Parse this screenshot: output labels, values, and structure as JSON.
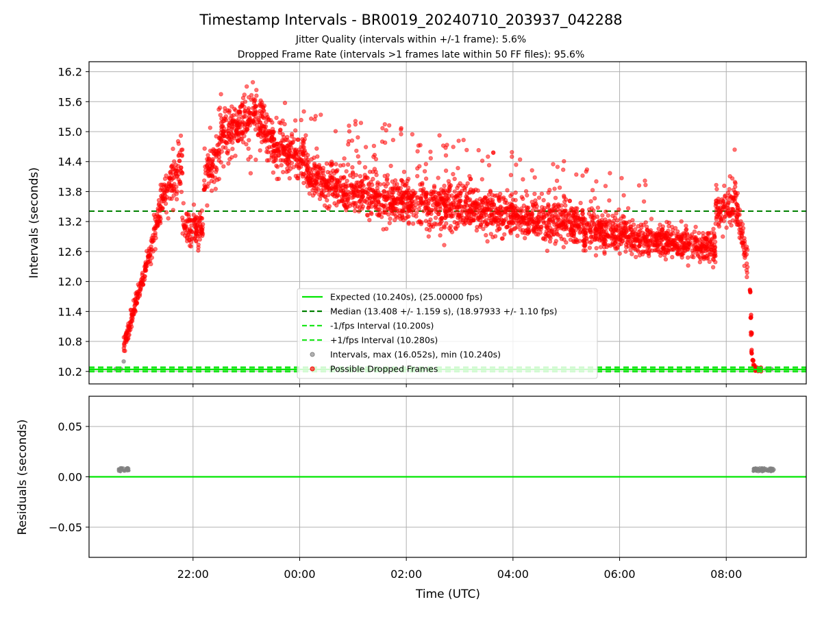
{
  "chart_data": {
    "type": "scatter",
    "title": "Timestamp Intervals - BR0019_20240710_203937_042288",
    "subtitle_lines": [
      "Jitter Quality (intervals within +/-1 frame): 5.6%",
      "Dropped Frame Rate (intervals >1 frames late within 50 FF files): 95.6%"
    ],
    "colors": {
      "expected": "#00e600",
      "median": "#008000",
      "interval_lines": "#1ae61a",
      "intervals": "#808080",
      "dropped": "#ff0000",
      "grid": "#b0b0b0"
    },
    "x_axis": {
      "label": "Time (UTC)",
      "unit": "hours since 00:00 UTC (negative = previous day)",
      "range": [
        -3.95,
        9.5
      ],
      "ticks": [
        {
          "value": -2,
          "label": "22:00"
        },
        {
          "value": 0,
          "label": "00:00"
        },
        {
          "value": 2,
          "label": "02:00"
        },
        {
          "value": 4,
          "label": "04:00"
        },
        {
          "value": 6,
          "label": "06:00"
        },
        {
          "value": 8,
          "label": "08:00"
        }
      ]
    },
    "top_panel": {
      "ylabel": "Intervals (seconds)",
      "ylim": [
        9.95,
        16.4
      ],
      "yticks": [
        "10.2",
        "10.8",
        "11.4",
        "12.0",
        "12.6",
        "13.2",
        "13.8",
        "14.4",
        "15.0",
        "15.6",
        "16.2"
      ],
      "expected_interval": 10.24,
      "median_interval": 13.408,
      "minus_interval": 10.2,
      "plus_interval": 10.28,
      "legend": [
        {
          "label": "Expected (10.240s), (25.00000 fps)",
          "kind": "solid-line",
          "color": "#00e600"
        },
        {
          "label": "Median (13.408 +/- 1.159 s), (18.97933 +/- 1.10 fps)",
          "kind": "dashed-line",
          "color": "#008000"
        },
        {
          "label": "-1/fps Interval (10.200s)",
          "kind": "dashed-line",
          "color": "#1ae61a"
        },
        {
          "label": "+1/fps Interval (10.280s)",
          "kind": "dashed-line",
          "color": "#1ae61a"
        },
        {
          "label": "Intervals, max (16.052s), min (10.240s)",
          "kind": "marker",
          "color": "#808080"
        },
        {
          "label": "Possible Dropped Frames",
          "kind": "marker",
          "color": "#ff0000"
        }
      ],
      "trend_segments": [
        {
          "from": -3.3,
          "to": -2.8,
          "start": 10.7,
          "end": 12.6,
          "spread": 0.18
        },
        {
          "from": -2.8,
          "to": -2.55,
          "start": 12.6,
          "end": 13.8,
          "spread": 0.45
        },
        {
          "from": -2.55,
          "to": -2.2,
          "start": 13.8,
          "end": 14.3,
          "spread": 0.5
        },
        {
          "from": -2.2,
          "to": -1.8,
          "start": 13.1,
          "end": 13.0,
          "spread": 0.35
        },
        {
          "from": -1.8,
          "to": -1.5,
          "start": 14.0,
          "end": 14.6,
          "spread": 0.5
        },
        {
          "from": -1.5,
          "to": -0.8,
          "start": 14.8,
          "end": 15.4,
          "spread": 0.45
        },
        {
          "from": -0.8,
          "to": -0.5,
          "start": 15.3,
          "end": 14.9,
          "spread": 0.45
        },
        {
          "from": -0.5,
          "to": 0.1,
          "start": 14.7,
          "end": 14.4,
          "spread": 0.4
        },
        {
          "from": 0.1,
          "to": 0.8,
          "start": 14.2,
          "end": 13.8,
          "spread": 0.4
        },
        {
          "from": 0.8,
          "to": 2.0,
          "start": 13.8,
          "end": 13.6,
          "spread": 0.45
        },
        {
          "from": 2.0,
          "to": 4.0,
          "start": 13.6,
          "end": 13.3,
          "spread": 0.45
        },
        {
          "from": 4.0,
          "to": 6.0,
          "start": 13.3,
          "end": 13.0,
          "spread": 0.4
        },
        {
          "from": 6.0,
          "to": 7.8,
          "start": 12.9,
          "end": 12.7,
          "spread": 0.3
        },
        {
          "from": 7.8,
          "to": 8.2,
          "start": 13.3,
          "end": 13.6,
          "spread": 0.5
        },
        {
          "from": 8.2,
          "to": 8.4,
          "start": 13.4,
          "end": 12.4,
          "spread": 0.35
        }
      ],
      "outlier_band": {
        "from": -1.6,
        "to": 6.5,
        "start": 15.9,
        "end": 14.1
      },
      "drop_tail": [
        {
          "x": 8.45,
          "y": 11.8
        },
        {
          "x": 8.46,
          "y": 11.3
        },
        {
          "x": 8.47,
          "y": 10.95
        },
        {
          "x": 8.48,
          "y": 10.6
        },
        {
          "x": 8.5,
          "y": 10.4
        },
        {
          "x": 8.52,
          "y": 10.3
        },
        {
          "x": 8.55,
          "y": 10.25
        },
        {
          "x": 8.6,
          "y": 10.24
        },
        {
          "x": 8.65,
          "y": 10.24
        }
      ],
      "gray_points": [
        {
          "x": -3.3,
          "y": 10.4
        },
        {
          "x": -3.45,
          "y": 10.25
        },
        {
          "x": -3.35,
          "y": 10.25
        },
        {
          "x": 8.85,
          "y": 10.25
        },
        {
          "x": 8.75,
          "y": 10.25
        }
      ],
      "point_density_per_hour": 280
    },
    "bottom_panel": {
      "ylabel": "Residuals (seconds)",
      "ylim": [
        -0.08,
        0.08
      ],
      "yticks": [
        {
          "value": 0.05,
          "label": "0.05"
        },
        {
          "value": 0.0,
          "label": "0.00"
        },
        {
          "value": -0.05,
          "label": "−0.05"
        }
      ],
      "zero_line": 0.0,
      "residual_clusters": [
        {
          "from": -3.4,
          "to": -3.2,
          "y": 0.007,
          "spread": 0.002
        },
        {
          "from": 8.5,
          "to": 8.9,
          "y": 0.007,
          "spread": 0.002
        }
      ]
    }
  }
}
